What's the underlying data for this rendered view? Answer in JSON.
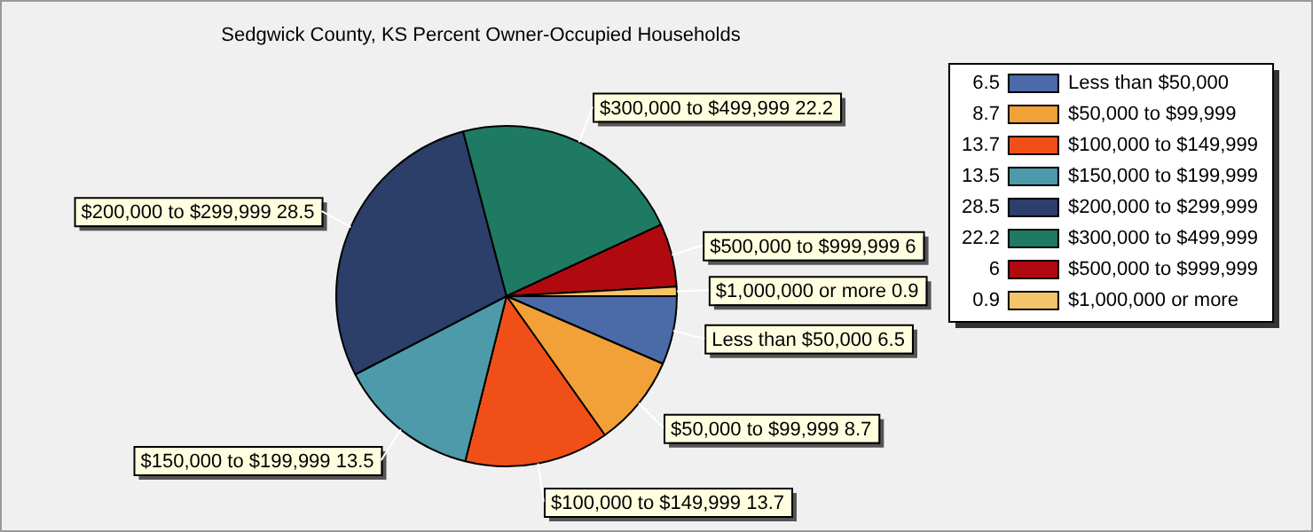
{
  "chart_data": {
    "type": "pie",
    "title": "Sedgwick County, KS Percent Owner-Occupied Households",
    "categories": [
      "Less than $50,000",
      "$50,000 to $99,999",
      "$100,000 to $149,999",
      "$150,000 to $199,999",
      "$200,000 to $299,999",
      "$300,000 to $499,999",
      "$500,000 to $999,999",
      "$1,000,000 or more"
    ],
    "values": [
      6.5,
      8.7,
      13.7,
      13.5,
      28.5,
      22.2,
      6,
      0.9
    ],
    "value_labels": [
      "Less than $50,000 6.5",
      "$50,000 to $99,999 8.7",
      "$100,000 to $149,999 13.7",
      "$150,000 to $199,999 13.5",
      "$200,000 to $299,999 28.5",
      "$300,000 to $499,999 22.2",
      "$500,000 to $999,999 6",
      "$1,000,000 or more 0.9"
    ],
    "annotations": [
      "6.5",
      "8.7",
      "13.7",
      "13.5",
      "28.5",
      "22.2",
      "6",
      "0.9"
    ],
    "colors": [
      "#4a6aa8",
      "#f2a038",
      "#f05018",
      "#4c9aaa",
      "#2c3e6a",
      "#1e7a62",
      "#b00a10",
      "#f5c468"
    ],
    "legend": "right"
  }
}
